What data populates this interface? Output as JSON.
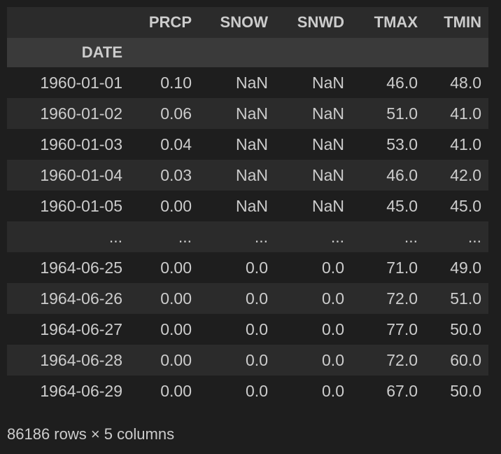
{
  "table": {
    "columns": [
      "PRCP",
      "SNOW",
      "SNWD",
      "TMAX",
      "TMIN"
    ],
    "index_name": "DATE",
    "rows": [
      {
        "index": "1960-01-01",
        "values": [
          "0.10",
          "NaN",
          "NaN",
          "46.0",
          "48.0"
        ]
      },
      {
        "index": "1960-01-02",
        "values": [
          "0.06",
          "NaN",
          "NaN",
          "51.0",
          "41.0"
        ]
      },
      {
        "index": "1960-01-03",
        "values": [
          "0.04",
          "NaN",
          "NaN",
          "53.0",
          "41.0"
        ]
      },
      {
        "index": "1960-01-04",
        "values": [
          "0.03",
          "NaN",
          "NaN",
          "46.0",
          "42.0"
        ]
      },
      {
        "index": "1960-01-05",
        "values": [
          "0.00",
          "NaN",
          "NaN",
          "45.0",
          "45.0"
        ]
      },
      {
        "index": "...",
        "values": [
          "...",
          "...",
          "...",
          "...",
          "..."
        ]
      },
      {
        "index": "1964-06-25",
        "values": [
          "0.00",
          "0.0",
          "0.0",
          "71.0",
          "49.0"
        ]
      },
      {
        "index": "1964-06-26",
        "values": [
          "0.00",
          "0.0",
          "0.0",
          "72.0",
          "51.0"
        ]
      },
      {
        "index": "1964-06-27",
        "values": [
          "0.00",
          "0.0",
          "0.0",
          "77.0",
          "50.0"
        ]
      },
      {
        "index": "1964-06-28",
        "values": [
          "0.00",
          "0.0",
          "0.0",
          "72.0",
          "60.0"
        ]
      },
      {
        "index": "1964-06-29",
        "values": [
          "0.00",
          "0.0",
          "0.0",
          "67.0",
          "50.0"
        ]
      }
    ]
  },
  "shape_text": "86186 rows × 5 columns",
  "colors": {
    "background": "#1e1e1e",
    "row_stripe": "#2b2b2b",
    "index_header_row": "#3a3a3a",
    "text": "#cccccc"
  }
}
